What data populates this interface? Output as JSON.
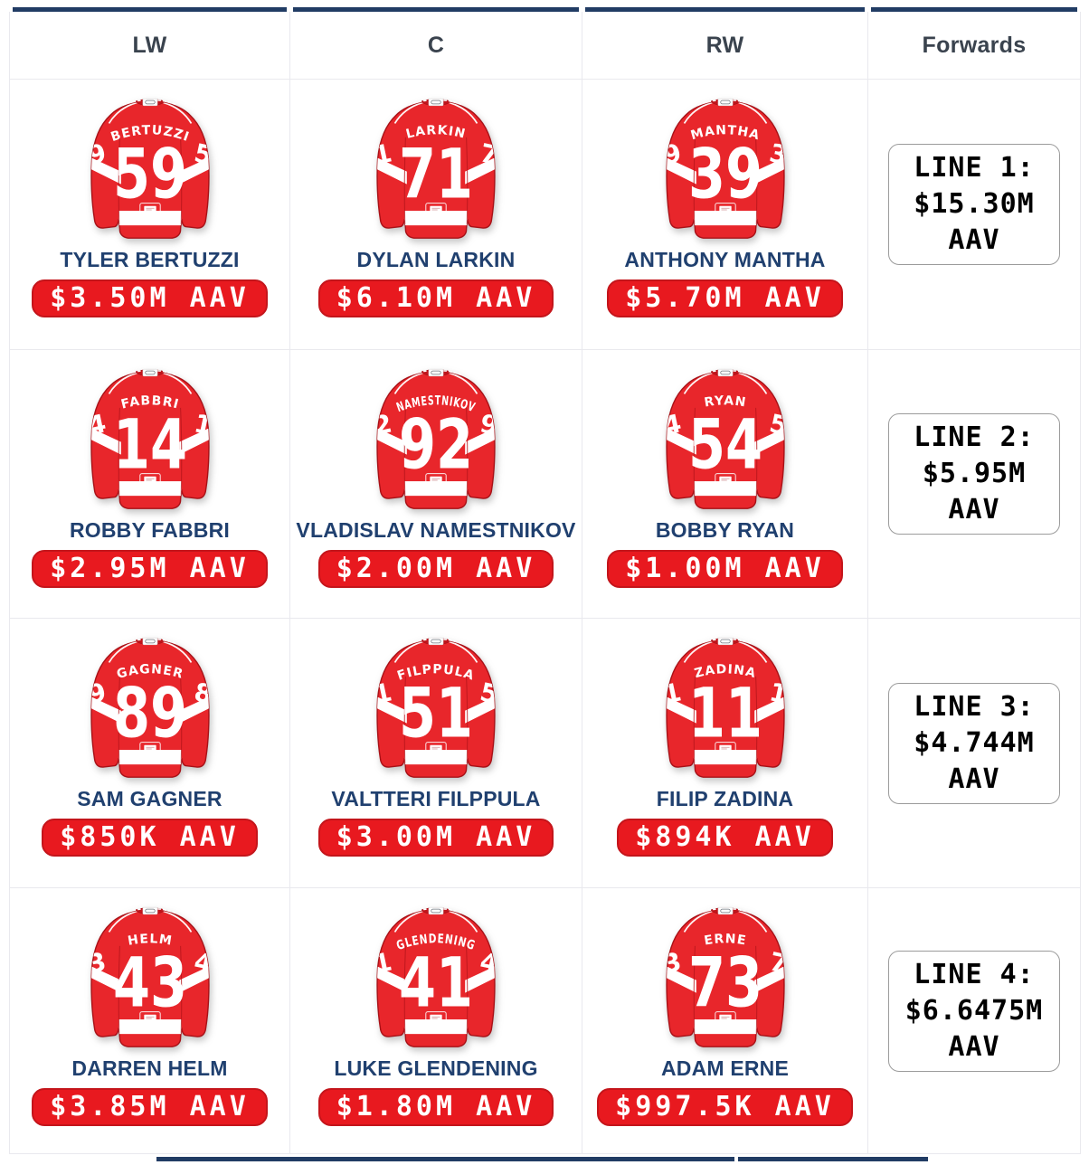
{
  "header": {
    "columns": [
      "LW",
      "C",
      "RW",
      "Forwards"
    ]
  },
  "colors": {
    "navy": "#213c64",
    "jersey_red": "#e8262b",
    "jersey_dark_red": "#a81117",
    "pill_red": "#e8191f",
    "name_blue": "#20406f"
  },
  "rows": [
    {
      "line_total": "LINE 1: $15.30M AAV",
      "players": [
        {
          "name": "TYLER BERTUZZI",
          "jersey_name": "BERTUZZI",
          "number": "59",
          "sleeve_left": "9",
          "sleeve_right": "5",
          "aav": "$3.50M AAV"
        },
        {
          "name": "DYLAN LARKIN",
          "jersey_name": "LARKIN",
          "number": "71",
          "sleeve_left": "1",
          "sleeve_right": "7",
          "aav": "$6.10M AAV"
        },
        {
          "name": "ANTHONY MANTHA",
          "jersey_name": "MANTHA",
          "number": "39",
          "sleeve_left": "9",
          "sleeve_right": "3",
          "aav": "$5.70M AAV"
        }
      ]
    },
    {
      "line_total": "LINE 2: $5.95M AAV",
      "players": [
        {
          "name": "ROBBY FABBRI",
          "jersey_name": "FABBRI",
          "number": "14",
          "sleeve_left": "4",
          "sleeve_right": "1",
          "aav": "$2.95M AAV"
        },
        {
          "name": "VLADISLAV NAMESTNIKOV",
          "jersey_name": "NAMESTNIKOV",
          "number": "92",
          "sleeve_left": "2",
          "sleeve_right": "9",
          "aav": "$2.00M AAV"
        },
        {
          "name": "BOBBY RYAN",
          "jersey_name": "RYAN",
          "number": "54",
          "sleeve_left": "4",
          "sleeve_right": "5",
          "aav": "$1.00M AAV"
        }
      ]
    },
    {
      "line_total": "LINE 3: $4.744M AAV",
      "players": [
        {
          "name": "SAM GAGNER",
          "jersey_name": "GAGNER",
          "number": "89",
          "sleeve_left": "9",
          "sleeve_right": "8",
          "aav": "$850K AAV"
        },
        {
          "name": "VALTTERI FILPPULA",
          "jersey_name": "FILPPULA",
          "number": "51",
          "sleeve_left": "1",
          "sleeve_right": "5",
          "aav": "$3.00M AAV"
        },
        {
          "name": "FILIP ZADINA",
          "jersey_name": "ZADINA",
          "number": "11",
          "sleeve_left": "1",
          "sleeve_right": "1",
          "aav": "$894K AAV"
        }
      ]
    },
    {
      "line_total": "LINE 4: $6.6475M AAV",
      "players": [
        {
          "name": "DARREN HELM",
          "jersey_name": "HELM",
          "number": "43",
          "sleeve_left": "3",
          "sleeve_right": "4",
          "aav": "$3.85M AAV"
        },
        {
          "name": "LUKE GLENDENING",
          "jersey_name": "GLENDENING",
          "number": "41",
          "sleeve_left": "1",
          "sleeve_right": "4",
          "aav": "$1.80M AAV"
        },
        {
          "name": "ADAM ERNE",
          "jersey_name": "ERNE",
          "number": "73",
          "sleeve_left": "3",
          "sleeve_right": "7",
          "aav": "$997.5K AAV"
        }
      ]
    }
  ]
}
